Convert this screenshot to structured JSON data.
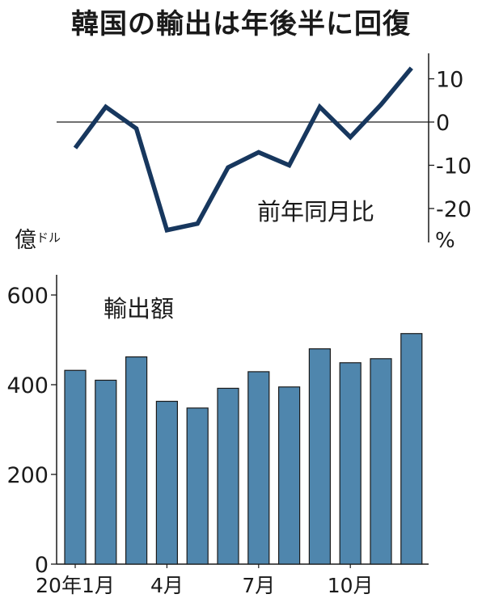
{
  "title": "韓国の輸出は年後半に回復",
  "colors": {
    "line": "#17375e",
    "bar": "#4f86ad",
    "bar_stroke": "#1a1a1a",
    "axis": "#1a1a1a"
  },
  "chart_data": [
    {
      "type": "line",
      "series_label": "前年同月比",
      "y_unit": "%",
      "ylim": [
        -25,
        15
      ],
      "y_ticks": [
        "10",
        "0",
        "-10",
        "-20"
      ],
      "y_tick_values": [
        10,
        0,
        -10,
        -20
      ],
      "reference_line": 0,
      "x": [
        "2020-01",
        "2020-02",
        "2020-03",
        "2020-04",
        "2020-05",
        "2020-06",
        "2020-07",
        "2020-08",
        "2020-09",
        "2020-10",
        "2020-11",
        "2020-12"
      ],
      "values": [
        -6,
        3.5,
        -1.5,
        -25,
        -23.5,
        -10.5,
        -7,
        -10,
        3.5,
        -3.5,
        4,
        12.5
      ]
    },
    {
      "type": "bar",
      "series_label": "輸出額",
      "y_unit_main": "億",
      "y_unit_sub": "ドル",
      "ylim": [
        0,
        600
      ],
      "y_ticks": [
        "0",
        "200",
        "400",
        "600"
      ],
      "y_tick_values": [
        0,
        200,
        400,
        600
      ],
      "categories": [
        "2020-01",
        "2020-02",
        "2020-03",
        "2020-04",
        "2020-05",
        "2020-06",
        "2020-07",
        "2020-08",
        "2020-09",
        "2020-10",
        "2020-11",
        "2020-12"
      ],
      "x_tick_labels": [
        {
          "index": 0,
          "label": "20年1月"
        },
        {
          "index": 3,
          "label": "4月"
        },
        {
          "index": 6,
          "label": "7月"
        },
        {
          "index": 9,
          "label": "10月"
        }
      ],
      "values": [
        432,
        410,
        462,
        363,
        348,
        392,
        429,
        395,
        480,
        449,
        458,
        514
      ]
    }
  ]
}
